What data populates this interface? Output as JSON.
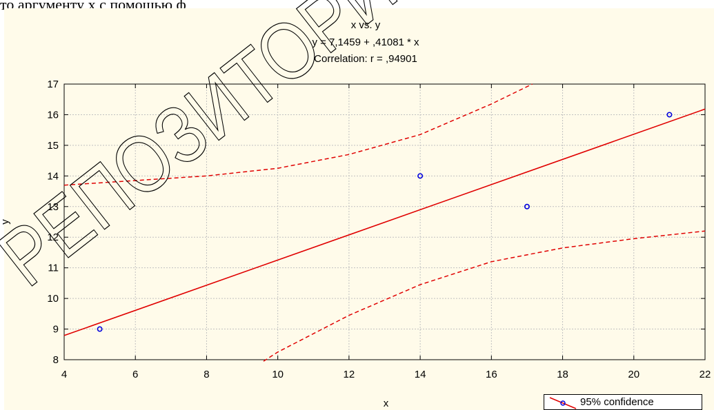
{
  "page_header_text": "то аргументу х с помощью ф",
  "watermark_text": "РЕПОЗИТОРИЙ",
  "colors": {
    "panel_bg": "#fffbea",
    "fit_line": "#e00000",
    "points": "#0000dd",
    "grid": "#c0c0c0",
    "watermark": "#000000"
  },
  "chart_data": {
    "type": "scatter",
    "title": "x vs. y",
    "equation": "y = 7,1459 + ,41081 *    x",
    "correlation": "Correlation: r = ,94901",
    "xlabel": "x",
    "ylabel": "y",
    "xlim": [
      4,
      22
    ],
    "ylim": [
      8,
      17
    ],
    "x_ticks": [
      "4",
      "6",
      "8",
      "10",
      "12",
      "14",
      "16",
      "18",
      "20",
      "22"
    ],
    "y_ticks": [
      "8",
      "9",
      "10",
      "11",
      "12",
      "13",
      "14",
      "15",
      "16",
      "17"
    ],
    "grid": true,
    "points": [
      {
        "x": 5,
        "y": 9
      },
      {
        "x": 14,
        "y": 14
      },
      {
        "x": 17,
        "y": 13
      },
      {
        "x": 21,
        "y": 16
      }
    ],
    "regression": {
      "intercept": 7.1459,
      "slope": 0.41081
    },
    "upper_confidence": [
      {
        "x": 4,
        "y": 13.7
      },
      {
        "x": 6,
        "y": 13.85
      },
      {
        "x": 8,
        "y": 14.0
      },
      {
        "x": 10,
        "y": 14.25
      },
      {
        "x": 12,
        "y": 14.7
      },
      {
        "x": 14,
        "y": 15.35
      },
      {
        "x": 16,
        "y": 16.35
      },
      {
        "x": 17.15,
        "y": 17.0
      }
    ],
    "lower_confidence": [
      {
        "x": 9.6,
        "y": 7.95
      },
      {
        "x": 10,
        "y": 8.25
      },
      {
        "x": 12,
        "y": 9.45
      },
      {
        "x": 14,
        "y": 10.45
      },
      {
        "x": 16,
        "y": 11.2
      },
      {
        "x": 18,
        "y": 11.65
      },
      {
        "x": 20,
        "y": 11.95
      },
      {
        "x": 22,
        "y": 12.2
      }
    ],
    "legend": {
      "entries": [
        "95% confidence"
      ],
      "placement": "bottom-right"
    }
  }
}
